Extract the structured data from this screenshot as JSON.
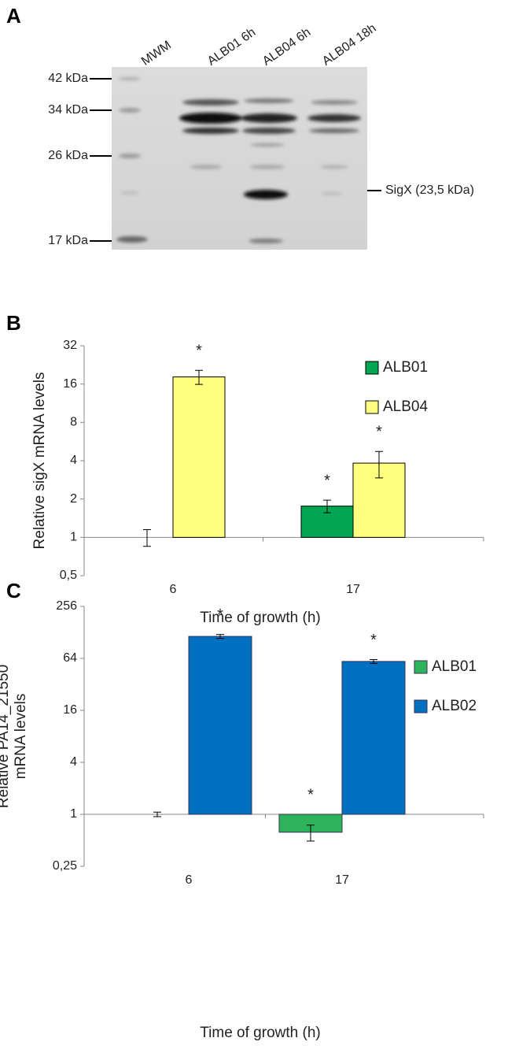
{
  "blot": {
    "panel_label": "A",
    "lanes": [
      "MWM",
      "ALB01 6h",
      "ALB04 6h",
      "ALB04 18h"
    ],
    "markers": [
      "42 kDa",
      "34 kDa",
      "26 kDa",
      "17 kDa"
    ],
    "band_label": "SigX (23,5 kDa)"
  },
  "chart_data": [
    {
      "type": "bar",
      "panel_label": "B",
      "ylabel": [
        "Relative sigX mRNA levels"
      ],
      "xlabel": "Time of growth (h)",
      "categories": [
        "6",
        "17"
      ],
      "yscale": "log",
      "ylim": [
        0.5,
        32
      ],
      "yticks": [
        {
          "value": 0.5,
          "label": "0,5"
        },
        1,
        2,
        4,
        8,
        16,
        32
      ],
      "legend": "upper right",
      "series": [
        {
          "name": "ALB01",
          "color": "#00a651",
          "values": [
            1,
            1.76
          ],
          "errors": [
            0.15,
            0.2
          ],
          "significance": [
            null,
            "*"
          ]
        },
        {
          "name": "ALB04",
          "color": "#ffff80",
          "values": [
            18.2,
            3.83
          ],
          "errors": [
            2.3,
            0.9
          ],
          "significance": [
            "*",
            "*"
          ]
        }
      ]
    },
    {
      "type": "bar",
      "panel_label": "C",
      "ylabel": [
        "Relative PA14_21550",
        "mRNA levels"
      ],
      "xlabel": "Time of growth (h)",
      "categories": [
        "6",
        "17"
      ],
      "yscale": "log",
      "ylim": [
        0.25,
        256
      ],
      "yticks": [
        {
          "value": 0.25,
          "label": "0,25"
        },
        1,
        4,
        16,
        64,
        256
      ],
      "legend": "center right",
      "series": [
        {
          "name": "ALB01",
          "color": "#2db35b",
          "values": [
            1,
            0.62
          ],
          "errors": [
            0.06,
            0.13
          ],
          "significance": [
            null,
            "*"
          ]
        },
        {
          "name": "ALB02",
          "color": "#0070c0",
          "values": [
            115,
            59
          ],
          "errors": [
            6,
            3
          ],
          "significance": [
            "*",
            "*"
          ]
        }
      ]
    }
  ]
}
